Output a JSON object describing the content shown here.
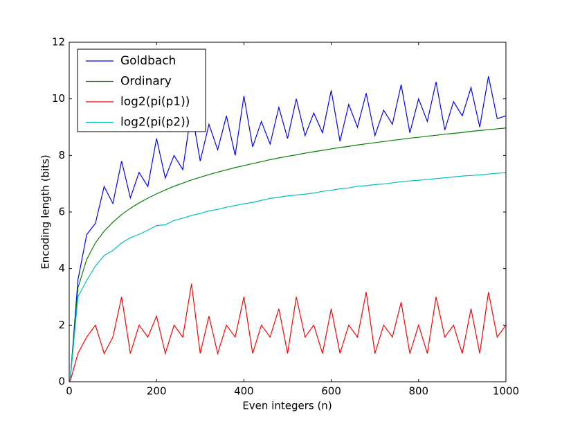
{
  "chart_data": {
    "type": "line",
    "xlabel": "Even integers (n)",
    "ylabel": "Encoding length (bits)",
    "x": [
      2,
      20,
      40,
      60,
      80,
      100,
      120,
      140,
      160,
      180,
      200,
      220,
      240,
      260,
      280,
      300,
      320,
      340,
      360,
      380,
      400,
      420,
      440,
      460,
      480,
      500,
      520,
      540,
      560,
      580,
      600,
      620,
      640,
      660,
      680,
      700,
      720,
      740,
      760,
      780,
      800,
      820,
      840,
      860,
      880,
      900,
      920,
      940,
      960,
      980,
      1000
    ],
    "series": [
      {
        "name": "Goldbach",
        "color": "#0000ff",
        "values": [
          0,
          3.6,
          5.2,
          5.6,
          6.9,
          6.3,
          7.8,
          6.5,
          7.4,
          6.9,
          8.6,
          7.2,
          8.0,
          7.5,
          9.6,
          7.8,
          9.1,
          8.2,
          9.4,
          8.0,
          10.1,
          8.3,
          9.2,
          8.4,
          9.7,
          8.6,
          10.0,
          8.7,
          9.5,
          8.8,
          10.3,
          8.5,
          9.8,
          9.0,
          10.2,
          8.7,
          9.6,
          9.1,
          10.5,
          8.8,
          10.0,
          9.2,
          10.6,
          8.9,
          9.9,
          9.4,
          10.4,
          9.0,
          10.8,
          9.3,
          9.4
        ]
      },
      {
        "name": "Ordinary",
        "color": "#008000",
        "values": [
          0,
          3.32,
          4.32,
          4.91,
          5.32,
          5.64,
          5.91,
          6.13,
          6.32,
          6.49,
          6.64,
          6.78,
          6.91,
          7.02,
          7.13,
          7.23,
          7.32,
          7.41,
          7.49,
          7.57,
          7.64,
          7.71,
          7.78,
          7.85,
          7.91,
          7.97,
          8.02,
          8.08,
          8.13,
          8.18,
          8.23,
          8.28,
          8.32,
          8.37,
          8.41,
          8.45,
          8.49,
          8.53,
          8.57,
          8.61,
          8.64,
          8.68,
          8.71,
          8.75,
          8.78,
          8.81,
          8.85,
          8.88,
          8.91,
          8.94,
          8.97
        ]
      },
      {
        "name": "log2(pi(p1))",
        "color": "#ff0000",
        "values": [
          0,
          1,
          1.58,
          2,
          1,
          1.58,
          3,
          1,
          2,
          1.58,
          2.32,
          1,
          2,
          1.58,
          3.46,
          1,
          2.32,
          1,
          2,
          1.58,
          3,
          1,
          2,
          1.58,
          2.58,
          1,
          3,
          1.58,
          2,
          1,
          2.58,
          1,
          2,
          1.58,
          3.17,
          1,
          2,
          1.58,
          2.81,
          1,
          2,
          1,
          3,
          1.58,
          2,
          1,
          2.58,
          1,
          3.17,
          1.58,
          2
        ]
      },
      {
        "name": "log2(pi(p2))",
        "color": "#00bfbf",
        "values": [
          0,
          3,
          3.58,
          4.09,
          4.46,
          4.64,
          4.91,
          5.09,
          5.21,
          5.36,
          5.52,
          5.55,
          5.7,
          5.78,
          5.88,
          5.95,
          6.04,
          6.09,
          6.17,
          6.23,
          6.29,
          6.34,
          6.41,
          6.48,
          6.52,
          6.57,
          6.6,
          6.63,
          6.67,
          6.73,
          6.77,
          6.82,
          6.85,
          6.91,
          6.93,
          6.97,
          6.99,
          7.03,
          7.07,
          7.1,
          7.12,
          7.15,
          7.18,
          7.21,
          7.24,
          7.27,
          7.29,
          7.31,
          7.34,
          7.37,
          7.39
        ]
      }
    ],
    "xlim": [
      0,
      1000
    ],
    "xticks": [
      0,
      200,
      400,
      600,
      800,
      1000
    ],
    "ylim": [
      0,
      12
    ],
    "yticks": [
      0,
      2,
      4,
      6,
      8,
      10,
      12
    ],
    "legend": "upper left"
  }
}
